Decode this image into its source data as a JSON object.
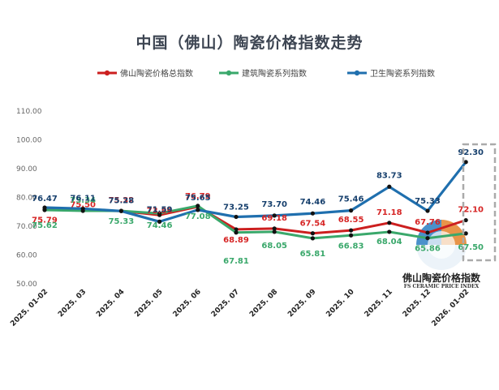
{
  "chart_data": {
    "type": "line",
    "title": "中国（佛山）陶瓷价格指数走势",
    "categories": [
      "2025. 01-02",
      "2025. 03",
      "2025. 04",
      "2025. 05",
      "2025. 06",
      "2025. 07",
      "2025. 08",
      "2025. 09",
      "2025. 10",
      "2025. 11",
      "2025. 12",
      "2026. 01-02"
    ],
    "y_ticks": [
      "110.00",
      "100.00",
      "90.00",
      "80.00",
      "70.00",
      "60.00",
      "50.00"
    ],
    "ylim": [
      50,
      110
    ],
    "grid": false,
    "legend_position": "top",
    "series": [
      {
        "name": "佛山陶瓷价格总指数",
        "color": "#cc1f1f",
        "values": [
          75.79,
          75.5,
          75.32,
          73.89,
          76.79,
          68.89,
          69.18,
          67.54,
          68.55,
          71.18,
          67.76,
          72.1
        ],
        "labels": [
          "75.79",
          "75.50",
          "75.32",
          "73.89",
          "76.79",
          "68.89",
          "69.18",
          "67.54",
          "68.55",
          "71.18",
          "67.76",
          "72.10"
        ]
      },
      {
        "name": "建筑陶瓷系列指数",
        "color": "#3aa86b",
        "values": [
          75.62,
          75.34,
          75.33,
          74.46,
          77.08,
          67.81,
          68.05,
          65.81,
          66.83,
          68.04,
          65.86,
          67.5
        ],
        "labels": [
          "75.62",
          "75.34",
          "75.33",
          "74.46",
          "77.08",
          "67.81",
          "68.05",
          "65.81",
          "66.83",
          "68.04",
          "65.86",
          "67.50"
        ]
      },
      {
        "name": "卫生陶瓷系列指数",
        "color": "#1f6fae",
        "values": [
          76.47,
          76.11,
          75.28,
          71.59,
          75.65,
          73.25,
          73.7,
          74.46,
          75.46,
          83.73,
          75.33,
          92.3
        ],
        "labels": [
          "76.47",
          "76.11",
          "75.28",
          "71.59",
          "75.65",
          "73.25",
          "73.70",
          "74.46",
          "75.46",
          "83.73",
          "75.33",
          "92.30"
        ]
      }
    ]
  },
  "watermark": {
    "title": "佛山陶瓷价格指数",
    "subtitle": "FS CERAMIC PRICE INDEX"
  },
  "highlight_box_color": "#aaaaaa"
}
